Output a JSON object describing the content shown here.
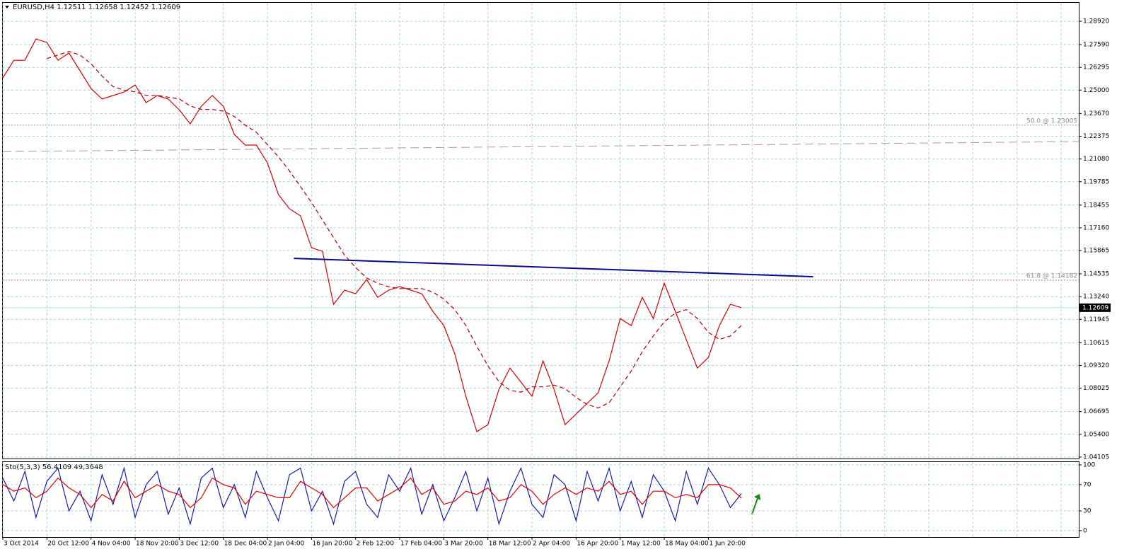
{
  "chart_data": [
    {
      "type": "line",
      "title": "EURUSD,H4  1.12511 1.12658 1.12452 1.12609",
      "xlim": [
        0,
        97.6
      ],
      "ylim": [
        1.0402,
        1.2993
      ],
      "yticks": [
        {
          "value": 1.2892,
          "label": "1.28920"
        },
        {
          "value": 1.2759,
          "label": "1.27590"
        },
        1.26295,
        {
          "value": 1.25,
          "label": "1.25000"
        },
        {
          "value": 1.2367,
          "label": "1.23670"
        },
        1.22375,
        {
          "value": 1.2108,
          "label": "1.21080"
        },
        1.19785,
        1.18455,
        {
          "value": 1.1716,
          "label": "1.17160"
        },
        1.15865,
        1.14535,
        {
          "value": 1.1324,
          "label": "1.13240"
        },
        1.11945,
        1.10615,
        {
          "value": 1.0932,
          "label": "1.09320"
        },
        1.08025,
        1.06695,
        {
          "value": 1.054,
          "label": "1.05400"
        },
        1.04105
      ],
      "grid": true,
      "series": [
        {
          "name": "EURUSD",
          "color": "#d40000",
          "values": [
            1.257,
            1.267,
            1.267,
            1.2791,
            1.2771,
            1.267,
            1.2711,
            1.261,
            1.2509,
            1.2449,
            1.2469,
            1.2489,
            1.2529,
            1.2429,
            1.2469,
            1.2449,
            1.2388,
            1.2308,
            1.2408,
            1.2469,
            1.2408,
            1.2247,
            1.2187,
            1.2187,
            1.2086,
            1.1905,
            1.1824,
            1.1784,
            1.1602,
            1.1582,
            1.128,
            1.1361,
            1.134,
            1.1421,
            1.132,
            1.1361,
            1.1381,
            1.1361,
            1.134,
            1.124,
            1.1159,
            1.0998,
            1.0756,
            1.0555,
            1.0595,
            1.0796,
            1.0917,
            1.0837,
            1.0756,
            1.0958,
            1.0796,
            1.0595,
            1.0655,
            1.0716,
            1.0776,
            1.0958,
            1.1199,
            1.1159,
            1.132,
            1.1199,
            1.1401,
            1.124,
            1.1078,
            1.0917,
            1.0978,
            1.1159,
            1.128,
            1.1261
          ]
        },
        {
          "name": "MA",
          "color": "#b00000",
          "values": [
            null,
            null,
            null,
            null,
            1.268,
            1.27,
            1.272,
            1.27,
            1.265,
            1.258,
            1.252,
            1.25,
            1.249,
            1.247,
            1.247,
            1.246,
            1.245,
            1.241,
            1.239,
            1.239,
            1.238,
            1.235,
            1.23,
            1.226,
            1.219,
            1.212,
            1.204,
            1.195,
            1.186,
            1.176,
            1.166,
            1.156,
            1.149,
            1.143,
            1.14,
            1.138,
            1.137,
            1.137,
            1.137,
            1.135,
            1.131,
            1.125,
            1.116,
            1.104,
            1.093,
            1.084,
            1.079,
            1.078,
            1.081,
            1.081,
            1.082,
            1.08,
            1.075,
            1.071,
            1.069,
            1.072,
            1.081,
            1.09,
            1.101,
            1.11,
            1.118,
            1.123,
            1.125,
            1.12,
            1.112,
            1.108,
            1.11,
            1.116
          ]
        }
      ],
      "trendline": {
        "x": [
          26.4,
          73.5
        ],
        "values": [
          1.1542,
          1.1437
        ],
        "color": "#0b0b8a"
      },
      "long_line": {
        "x": [
          0,
          97.6
        ],
        "values": [
          1.215,
          1.2207
        ],
        "color": "#a0a0a0"
      },
      "levels": [
        {
          "value": 1.23005,
          "label": "50.0 @ 1.23005"
        },
        {
          "value": 1.14182,
          "label": "61.8 @ 1.14182"
        }
      ],
      "current_price": 1.12609
    },
    {
      "type": "line",
      "title": "Sto(5,3,3) 56.4109 49,3648",
      "xlim": [
        0,
        97.6
      ],
      "ylim": [
        -9.8,
        104.3
      ],
      "yticks": [
        0,
        30,
        70,
        100
      ],
      "xticks": [
        {
          "value": 0,
          "label": "3 Oct 2014"
        },
        {
          "value": 4,
          "label": "20 Oct 12:00"
        },
        {
          "value": 8,
          "label": "4 Nov 04:00"
        },
        {
          "value": 12,
          "label": "18 Nov 20:00"
        },
        {
          "value": 16,
          "label": "3 Dec 12:00"
        },
        {
          "value": 20,
          "label": "18 Dec 04:00"
        },
        {
          "value": 24,
          "label": "2 Jan 04:00"
        },
        {
          "value": 28,
          "label": "16 Jan 20:00"
        },
        {
          "value": 32,
          "label": "2 Feb 12:00"
        },
        {
          "value": 36,
          "label": "17 Feb 04:00"
        },
        {
          "value": 40,
          "label": "3 Mar 20:00"
        },
        {
          "value": 44,
          "label": "18 Mar 12:00"
        },
        {
          "value": 48,
          "label": "2 Apr 04:00"
        },
        {
          "value": 52,
          "label": "16 Apr 20:00"
        },
        {
          "value": 56,
          "label": "1 May 12:00"
        },
        {
          "value": 60,
          "label": "18 May 04:00"
        },
        {
          "value": 64,
          "label": "1 Jun 20:00"
        }
      ],
      "grid": true,
      "series": [
        {
          "name": "Main",
          "color": "#1a1aa8",
          "values": [
            80,
            45,
            90,
            20,
            75,
            95,
            30,
            60,
            15,
            85,
            40,
            95,
            20,
            70,
            90,
            25,
            65,
            10,
            80,
            95,
            35,
            70,
            20,
            90,
            50,
            15,
            85,
            95,
            30,
            60,
            10,
            75,
            90,
            40,
            20,
            85,
            60,
            95,
            25,
            70,
            15,
            50,
            90,
            30,
            80,
            10,
            60,
            95,
            40,
            20,
            85,
            70,
            15,
            90,
            45,
            95,
            30,
            75,
            20,
            85,
            60,
            15,
            90,
            40,
            95,
            70,
            35,
            56.4109
          ]
        },
        {
          "name": "Signal",
          "color": "#e00000",
          "values": [
            70,
            60,
            65,
            50,
            60,
            80,
            65,
            55,
            35,
            55,
            45,
            75,
            50,
            60,
            70,
            60,
            55,
            35,
            50,
            80,
            70,
            65,
            40,
            60,
            55,
            50,
            50,
            75,
            65,
            55,
            35,
            50,
            65,
            65,
            45,
            55,
            65,
            80,
            55,
            65,
            40,
            45,
            60,
            55,
            65,
            45,
            50,
            70,
            60,
            40,
            55,
            65,
            55,
            65,
            60,
            75,
            55,
            60,
            40,
            60,
            60,
            50,
            55,
            50,
            70,
            70,
            65,
            49.3648
          ]
        }
      ]
    }
  ]
}
